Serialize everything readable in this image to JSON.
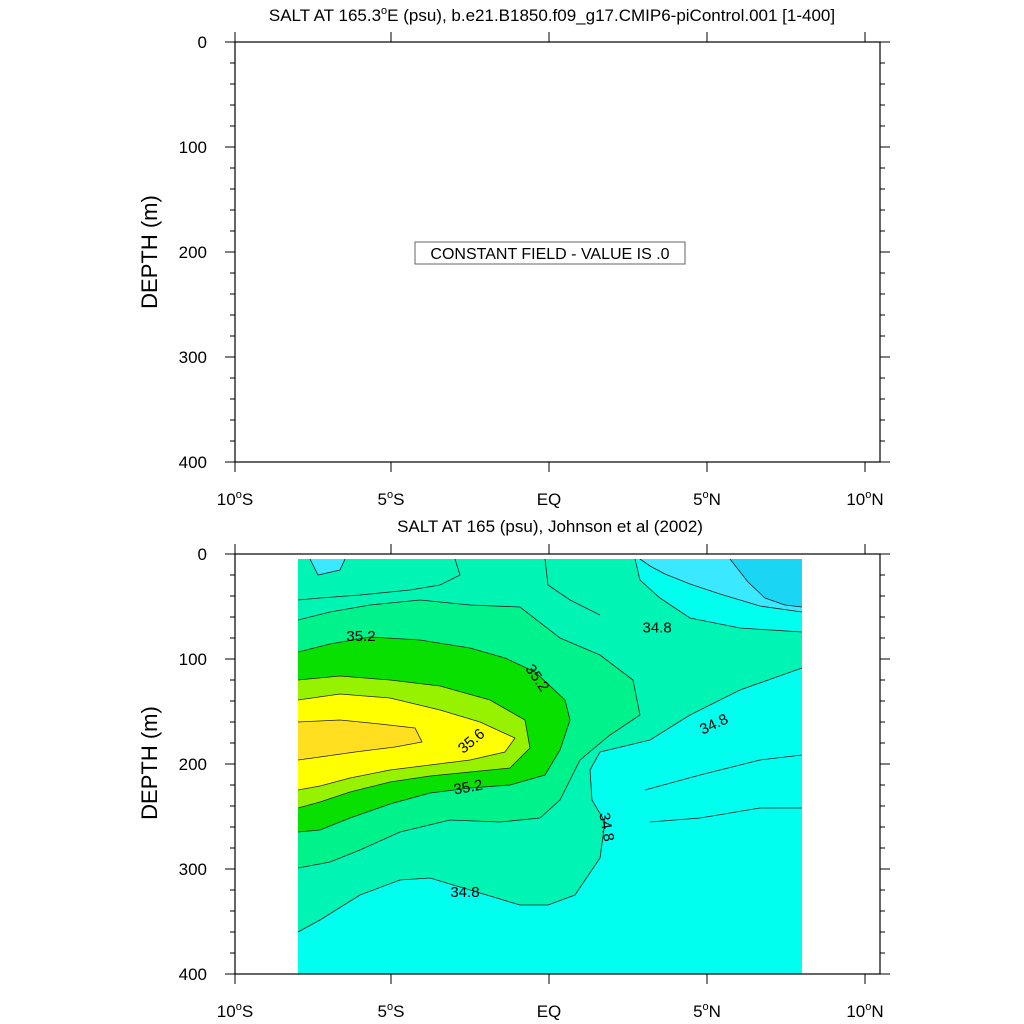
{
  "chart_data": [
    {
      "type": "heatmap",
      "title_main": "SALT AT 165.3",
      "title_degree": "o",
      "title_rest": "E (psu), b.e21.B1850.f09_g17.CMIP6-piControl.001 [1-400]",
      "ylabel": "DEPTH (m)",
      "ylim": [
        0,
        400
      ],
      "y_ticks": [
        "0",
        "100",
        "200",
        "300",
        "400"
      ],
      "x_ticks": [
        {
          "pre": "10",
          "deg": "o",
          "post": "S"
        },
        {
          "pre": "5",
          "deg": "o",
          "post": "S"
        },
        {
          "pre": "EQ",
          "deg": "",
          "post": ""
        },
        {
          "pre": "5",
          "deg": "o",
          "post": "N"
        },
        {
          "pre": "10",
          "deg": "o",
          "post": "N"
        }
      ],
      "note": "CONSTANT FIELD - VALUE IS .0",
      "constant_value": 0
    },
    {
      "type": "heatmap",
      "title": "SALT AT 165 (psu), Johnson et al (2002)",
      "ylabel": "DEPTH (m)",
      "ylim": [
        0,
        400
      ],
      "xlim": [
        -10,
        10
      ],
      "y_ticks": [
        "0",
        "100",
        "200",
        "300",
        "400"
      ],
      "x_ticks": [
        {
          "pre": "10",
          "deg": "o",
          "post": "S"
        },
        {
          "pre": "5",
          "deg": "o",
          "post": "S"
        },
        {
          "pre": "EQ",
          "deg": "",
          "post": ""
        },
        {
          "pre": "5",
          "deg": "o",
          "post": "N"
        },
        {
          "pre": "10",
          "deg": "o",
          "post": "N"
        }
      ],
      "data_extent": {
        "lat": [
          -8,
          8
        ],
        "depth": [
          5,
          400
        ]
      },
      "contour_labels": [
        {
          "text": "35.2",
          "lat": -6.0,
          "depth": 78,
          "angle": 0
        },
        {
          "text": "35.2",
          "lat": -0.4,
          "depth": 118,
          "angle": 55
        },
        {
          "text": "35.6",
          "lat": -2.5,
          "depth": 178,
          "angle": -40
        },
        {
          "text": "35.2",
          "lat": -2.6,
          "depth": 222,
          "angle": -10
        },
        {
          "text": "34.8",
          "lat": 3.4,
          "depth": 70,
          "angle": 0
        },
        {
          "text": "34.8",
          "lat": 5.2,
          "depth": 162,
          "angle": -25
        },
        {
          "text": "34.8",
          "lat": 1.8,
          "depth": 260,
          "angle": 80
        },
        {
          "text": "34.8",
          "lat": -2.7,
          "depth": 322,
          "angle": 0
        }
      ],
      "colors": {
        "s_lt_34_4": "#1ad6f4",
        "s_34_4_34_6": "#3ae8ff",
        "s_34_6_34_8": "#00ffee",
        "s_34_8_35_0": "#00f4b4",
        "s_35_0_35_2": "#00f28a",
        "s_35_2_35_4": "#08e000",
        "s_35_4_35_6": "#97f200",
        "s_35_6_35_8": "#ffff00",
        "s_gt_35_8": "#ffdf20"
      }
    }
  ]
}
